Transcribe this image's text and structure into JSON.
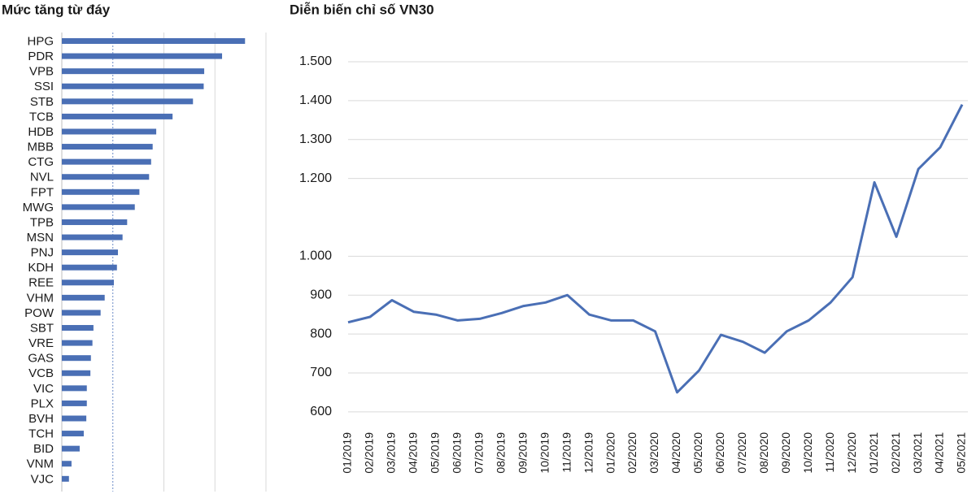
{
  "chart_data": [
    {
      "type": "bar",
      "orientation": "horizontal",
      "title": "Mức tăng từ đáy",
      "categories": [
        "HPG",
        "PDR",
        "VPB",
        "SSI",
        "STB",
        "TCB",
        "HDB",
        "MBB",
        "CTG",
        "NVL",
        "FPT",
        "MWG",
        "TPB",
        "MSN",
        "PNJ",
        "KDH",
        "REE",
        "VHM",
        "POW",
        "SBT",
        "VRE",
        "GAS",
        "VCB",
        "VIC",
        "PLX",
        "BVH",
        "TCH",
        "BID",
        "VNM",
        "VJC"
      ],
      "values": [
        359,
        314,
        279,
        278,
        257,
        217,
        185,
        178,
        175,
        171,
        152,
        143,
        128,
        119,
        110,
        108,
        102,
        84,
        76,
        62,
        60,
        57,
        56,
        49,
        49,
        48,
        43,
        35,
        19,
        14
      ],
      "color": "#4a6fb5",
      "xlim": [
        0,
        400
      ],
      "xticks": [
        100,
        200,
        300,
        400
      ],
      "grid": true
    },
    {
      "type": "line",
      "title": "Diễn biến chỉ số VN30",
      "x": [
        "01/2019",
        "02/2019",
        "03/2019",
        "04/2019",
        "05/2019",
        "06/2019",
        "07/2019",
        "08/2019",
        "09/2019",
        "10/2019",
        "11/2019",
        "12/2019",
        "01/2020",
        "02/2020",
        "03/2020",
        "04/2020",
        "05/2020",
        "06/2020",
        "07/2020",
        "08/2020",
        "09/2020",
        "10/2020",
        "11/2020",
        "12/2020",
        "01/2021",
        "02/2021",
        "03/2021",
        "04/2021",
        "05/2021"
      ],
      "series": [
        {
          "name": "VN30",
          "color": "#4a6fb5",
          "values": [
            830,
            844,
            887,
            857,
            850,
            835,
            839,
            854,
            872,
            881,
            900,
            850,
            835,
            835,
            807,
            650,
            706,
            798,
            780,
            752,
            807,
            835,
            881,
            946,
            1190,
            1050,
            1224,
            1280,
            1390
          ]
        }
      ],
      "ylim": [
        560,
        1500
      ],
      "yticks": [
        600,
        700,
        800,
        900,
        {
          "value": 1000,
          "label": "1.000"
        },
        {
          "value": 1200,
          "label": "1.200"
        },
        {
          "value": 1300,
          "label": "1.300"
        },
        {
          "value": 1400,
          "label": "1.400"
        },
        {
          "value": 1500,
          "label": "1.500"
        }
      ],
      "grid": true
    }
  ]
}
